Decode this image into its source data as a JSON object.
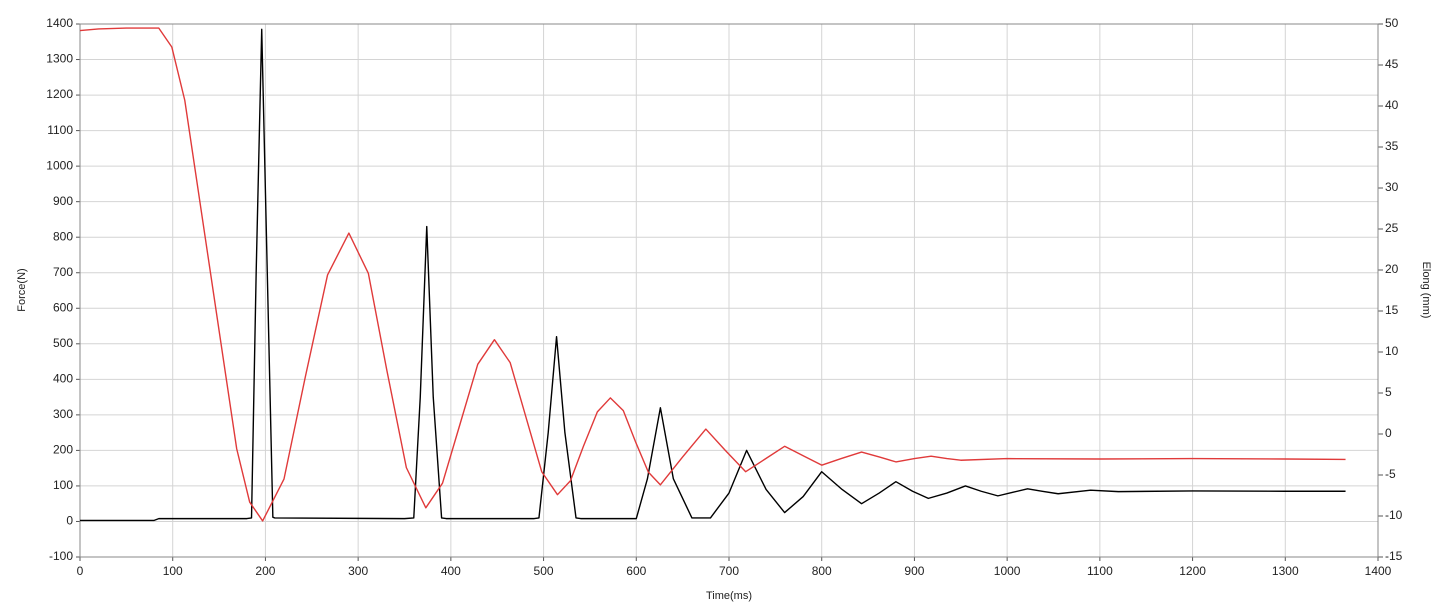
{
  "chart_data": {
    "type": "line",
    "xlabel": "Time(ms)",
    "ylabel": "Force(N)",
    "y2label": "Elong (mm)",
    "xlim": [
      0,
      1400
    ],
    "ylim": [
      -100,
      1400
    ],
    "y2lim": [
      -15,
      50
    ],
    "xticks": [
      0,
      100,
      200,
      300,
      400,
      500,
      600,
      700,
      800,
      900,
      1000,
      1100,
      1200,
      1300,
      1400
    ],
    "yticks": [
      -100,
      0,
      100,
      200,
      300,
      400,
      500,
      600,
      700,
      800,
      900,
      1000,
      1100,
      1200,
      1300,
      1400
    ],
    "y2ticks": [
      -15,
      -10,
      -5,
      0,
      5,
      10,
      15,
      20,
      25,
      30,
      35,
      40,
      45,
      50
    ],
    "grid": true,
    "series": [
      {
        "color": "#000000",
        "axis": "y",
        "x": [
          0,
          80,
          85,
          180,
          185,
          190,
          196,
          202,
          208,
          210,
          350,
          360,
          367,
          374,
          381,
          390,
          395,
          490,
          495,
          505,
          514,
          523,
          535,
          540,
          595,
          600,
          612,
          626,
          640,
          660,
          680,
          700,
          719,
          740,
          760,
          780,
          800,
          822,
          843,
          862,
          880,
          898,
          915,
          935,
          955,
          972,
          990,
          1006,
          1022,
          1038,
          1055,
          1090,
          1120,
          1200,
          1300,
          1365
        ],
        "values": [
          3,
          3,
          8,
          8,
          10,
          700,
          1385,
          700,
          12,
          10,
          8,
          10,
          350,
          830,
          350,
          10,
          8,
          8,
          10,
          250,
          520,
          250,
          10,
          8,
          8,
          8,
          120,
          320,
          120,
          10,
          10,
          80,
          200,
          90,
          25,
          70,
          140,
          90,
          50,
          80,
          112,
          85,
          65,
          80,
          100,
          85,
          72,
          82,
          92,
          85,
          78,
          88,
          84,
          86,
          85,
          85
        ]
      },
      {
        "color": "#e03a3a",
        "axis": "y2",
        "x": [
          0,
          20,
          50,
          85,
          99,
          113,
          141,
          169,
          183,
          197,
          220,
          243,
          267,
          290,
          311,
          331,
          352,
          373,
          391,
          410,
          429,
          447,
          464,
          481,
          498,
          515,
          529,
          543,
          558,
          572,
          586,
          599,
          613,
          626,
          650,
          675,
          696,
          718,
          739,
          760,
          780,
          800,
          821,
          843,
          862,
          880,
          900,
          918,
          935,
          950,
          1000,
          1100,
          1200,
          1300,
          1365
        ],
        "values": [
          49.2,
          49.4,
          49.5,
          49.5,
          47.2,
          40.7,
          19.45,
          -1.8,
          -8.3,
          -10.6,
          -5.5,
          6.95,
          19.4,
          24.5,
          19.6,
          7.75,
          -4.1,
          -9,
          -6,
          1.25,
          8.5,
          11.5,
          8.7,
          2.05,
          -4.6,
          -7.4,
          -5.7,
          -1.5,
          2.7,
          4.4,
          2.85,
          -0.9,
          -4.65,
          -6.2,
          -2.8,
          0.6,
          -2,
          -4.6,
          -3.05,
          -1.5,
          -2.65,
          -3.8,
          -3,
          -2.2,
          -2.8,
          -3.4,
          -3,
          -2.7,
          -3,
          -3.2,
          -3,
          -3.05,
          -3,
          -3.05,
          -3.1
        ]
      }
    ]
  }
}
